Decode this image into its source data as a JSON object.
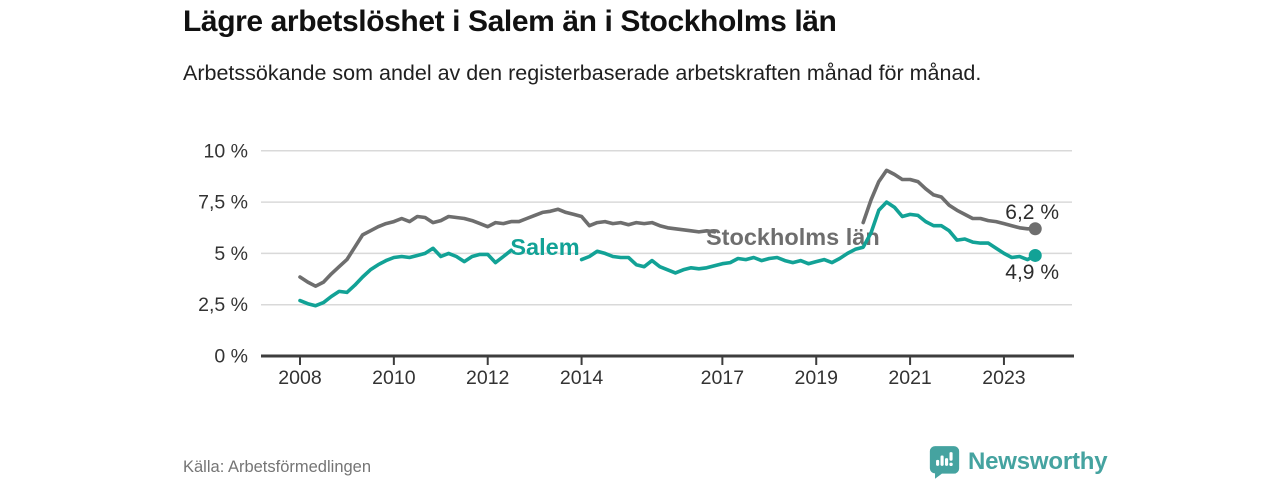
{
  "chart_data": {
    "type": "line",
    "title": "Lägre arbetslöshet i Salem än i Stockholms län",
    "subtitle": "Arbetssökande som andel av den registerbaserade arbetskraften månad för månad.",
    "source": "Källa: Arbetsförmedlingen",
    "grid": "horizontal",
    "legend": "inline series labels",
    "xlim": [
      2007.2,
      2024.4
    ],
    "ylim": [
      0,
      10
    ],
    "x_start": 2008.0,
    "x_step": 0.166667,
    "x_tick_values": [
      2008,
      2010,
      2012,
      2014,
      2017,
      2019,
      2021,
      2023
    ],
    "x_tick_labels": [
      "2008",
      "2010",
      "2012",
      "2014",
      "2017",
      "2019",
      "2021",
      "2023"
    ],
    "y_tick_values": [
      0,
      2.5,
      5,
      7.5,
      10
    ],
    "y_tick_labels": [
      "0 %",
      "2,5 %",
      "5 %",
      "7,5 %",
      "10 %"
    ],
    "series": [
      {
        "name": "Stockholms län",
        "color": "#6e6e6e",
        "end_value": 6.2,
        "end_label": "6,2 %",
        "label_gap_x": [
          2016.9,
          2019.9
        ],
        "values": [
          3.85,
          3.6,
          3.4,
          3.6,
          4.0,
          4.35,
          4.7,
          5.3,
          5.9,
          6.1,
          6.3,
          6.45,
          6.55,
          6.7,
          6.55,
          6.8,
          6.75,
          6.5,
          6.6,
          6.8,
          6.75,
          6.7,
          6.6,
          6.45,
          6.3,
          6.5,
          6.45,
          6.55,
          6.55,
          6.7,
          6.85,
          7.0,
          7.05,
          7.15,
          7.0,
          6.9,
          6.8,
          6.35,
          6.5,
          6.55,
          6.45,
          6.5,
          6.4,
          6.5,
          6.45,
          6.5,
          6.35,
          6.25,
          6.2,
          6.15,
          6.1,
          6.05,
          6.1,
          6.05,
          6.1,
          6.15,
          6.1,
          6.15,
          6.1,
          6.05,
          6.1,
          6.05,
          6.1,
          6.15,
          6.1,
          6.15,
          6.2,
          6.15,
          6.2,
          6.25,
          6.3,
          6.35,
          6.5,
          7.6,
          8.5,
          9.05,
          8.85,
          8.6,
          8.6,
          8.5,
          8.15,
          7.85,
          7.75,
          7.35,
          7.1,
          6.9,
          6.7,
          6.7,
          6.6,
          6.55,
          6.45,
          6.35,
          6.25,
          6.2,
          6.2
        ]
      },
      {
        "name": "Salem",
        "color": "#12a296",
        "end_value": 4.9,
        "end_label": "4,9 %",
        "label_gap_x": [
          2012.6,
          2013.85
        ],
        "values": [
          2.7,
          2.55,
          2.45,
          2.6,
          2.9,
          3.15,
          3.1,
          3.45,
          3.85,
          4.2,
          4.45,
          4.65,
          4.8,
          4.85,
          4.8,
          4.9,
          5.0,
          5.25,
          4.85,
          5.0,
          4.85,
          4.6,
          4.85,
          4.95,
          4.95,
          4.55,
          4.85,
          5.15,
          5.2,
          5.25,
          5.2,
          5.15,
          5.2,
          5.3,
          5.15,
          4.95,
          4.7,
          4.85,
          5.1,
          5.0,
          4.85,
          4.8,
          4.8,
          4.45,
          4.35,
          4.65,
          4.35,
          4.2,
          4.05,
          4.2,
          4.3,
          4.25,
          4.3,
          4.4,
          4.5,
          4.55,
          4.75,
          4.7,
          4.8,
          4.65,
          4.75,
          4.8,
          4.65,
          4.55,
          4.65,
          4.5,
          4.6,
          4.7,
          4.55,
          4.75,
          5.0,
          5.2,
          5.3,
          6.0,
          7.1,
          7.5,
          7.25,
          6.8,
          6.9,
          6.85,
          6.55,
          6.35,
          6.35,
          6.1,
          5.65,
          5.7,
          5.55,
          5.5,
          5.5,
          5.25,
          5.0,
          4.8,
          4.85,
          4.7,
          4.9
        ]
      }
    ],
    "colors": {
      "gridline": "#d9d9d9",
      "axis": "#3d3d3d",
      "tick_label": "#333333",
      "value_label": "#2d2d2d"
    }
  },
  "footer": {
    "brand_text": "Newsworthy",
    "brand_color": "#45a3a0"
  }
}
